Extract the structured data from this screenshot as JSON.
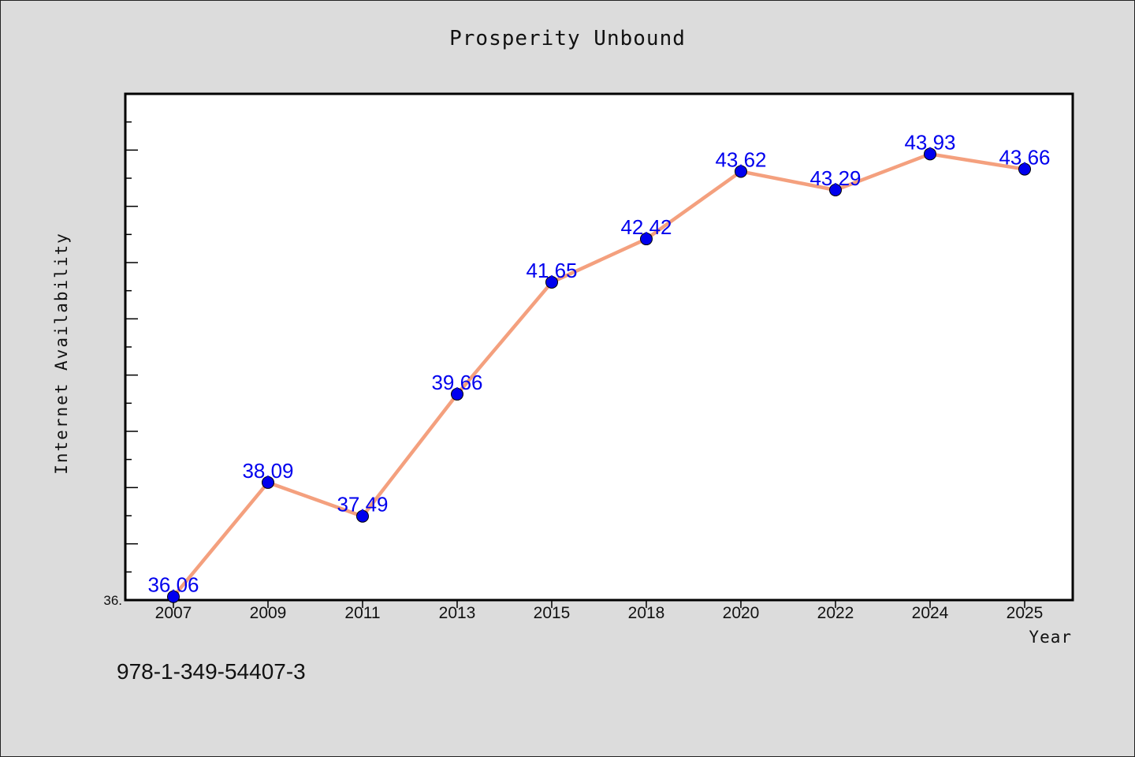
{
  "chart_data": {
    "type": "line",
    "title": "Prosperity Unbound",
    "xlabel": "Year",
    "ylabel": "Internet Availability",
    "categories": [
      "2007",
      "2009",
      "2011",
      "2013",
      "2015",
      "2018",
      "2020",
      "2022",
      "2024",
      "2025"
    ],
    "series": [
      {
        "values": [
          36.06,
          38.09,
          37.49,
          39.66,
          41.65,
          42.42,
          43.62,
          43.29,
          43.93,
          43.66
        ]
      }
    ],
    "data_labels": [
      "36.06",
      "38.09",
      "37.49",
      "39.66",
      "41.65",
      "42.42",
      "43.62",
      "43.29",
      "43.93",
      "43.66"
    ],
    "ylim": [
      36.0,
      45.0
    ],
    "y_tick_label": "36.",
    "grid": false,
    "line_color": "#f4a07e",
    "marker_color": "#0000ee",
    "label_color": "#0000ee",
    "plot_background": "#ffffff",
    "page_background": "#dcdcdc"
  },
  "footnote": "978-1-349-54407-3"
}
